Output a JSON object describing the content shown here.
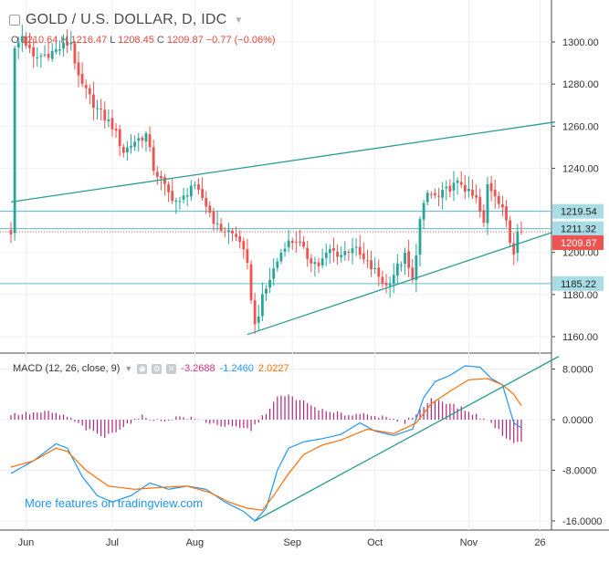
{
  "header": {
    "symbol_title": "GOLD / U.S. DOLLAR, D, IDC",
    "ohlc": {
      "o_label": "O",
      "o_value": "1210.64",
      "h_label": "H",
      "h_value": "1216.47",
      "l_label": "L",
      "l_value": "1208.45",
      "c_label": "C",
      "c_value": "1209.87",
      "change": "−0.77 (−0.06%)"
    }
  },
  "macd_legend": {
    "label": "MACD (12, 26, close, 9)",
    "hist_value": "-3.2688",
    "macd_value": "-1.2460",
    "signal_value": "2.0227"
  },
  "watermark": "More features on tradingview.com",
  "colors": {
    "candle_up": "#26a69a",
    "candle_down": "#ef5350",
    "trendline": "#2a9d8f",
    "hline": "#5bbcc9",
    "price_label_bg": "#a8dde6",
    "last_price_bg": "#ef5350",
    "macd_line": "#2196f3",
    "signal_line": "#ff6d00",
    "histogram": "#b0257a"
  },
  "chart_data": [
    {
      "type": "candlestick",
      "title": "GOLD / U.S. DOLLAR, D, IDC",
      "x_tick_labels": [
        "Jun",
        "Jul",
        "Aug",
        "Sep",
        "Oct",
        "Nov",
        "26"
      ],
      "y_tick_labels": [
        "1300.00",
        "1280.00",
        "1260.00",
        "1240.00",
        "1200.00",
        "1180.00",
        "1160.00"
      ],
      "ylim": [
        1153,
        1315
      ],
      "grid": true,
      "close_anchors": [
        {
          "day": 1,
          "close": 1296
        },
        {
          "day": 3,
          "close": 1303
        },
        {
          "day": 6,
          "close": 1292
        },
        {
          "day": 12,
          "close": 1296
        },
        {
          "day": 16,
          "close": 1300
        },
        {
          "day": 18,
          "close": 1282
        },
        {
          "day": 23,
          "close": 1268
        },
        {
          "day": 27,
          "close": 1260
        },
        {
          "day": 30,
          "close": 1248
        },
        {
          "day": 33,
          "close": 1253
        },
        {
          "day": 36,
          "close": 1256
        },
        {
          "day": 38,
          "close": 1240
        },
        {
          "day": 42,
          "close": 1228
        },
        {
          "day": 45,
          "close": 1223
        },
        {
          "day": 48,
          "close": 1232
        },
        {
          "day": 51,
          "close": 1226
        },
        {
          "day": 55,
          "close": 1212
        },
        {
          "day": 58,
          "close": 1210
        },
        {
          "day": 61,
          "close": 1206
        },
        {
          "day": 63,
          "close": 1193
        },
        {
          "day": 65,
          "close": 1165
        },
        {
          "day": 67,
          "close": 1178
        },
        {
          "day": 70,
          "close": 1192
        },
        {
          "day": 73,
          "close": 1204
        },
        {
          "day": 76,
          "close": 1206
        },
        {
          "day": 79,
          "close": 1198
        },
        {
          "day": 82,
          "close": 1194
        },
        {
          "day": 85,
          "close": 1201
        },
        {
          "day": 88,
          "close": 1199
        },
        {
          "day": 91,
          "close": 1203
        },
        {
          "day": 94,
          "close": 1196
        },
        {
          "day": 97,
          "close": 1191
        },
        {
          "day": 100,
          "close": 1184
        },
        {
          "day": 103,
          "close": 1193
        },
        {
          "day": 105,
          "close": 1198
        },
        {
          "day": 107,
          "close": 1186
        },
        {
          "day": 109,
          "close": 1215
        },
        {
          "day": 111,
          "close": 1228
        },
        {
          "day": 114,
          "close": 1226
        },
        {
          "day": 117,
          "close": 1231
        },
        {
          "day": 120,
          "close": 1233
        },
        {
          "day": 122,
          "close": 1228
        },
        {
          "day": 124,
          "close": 1225
        },
        {
          "day": 126,
          "close": 1213
        },
        {
          "day": 127,
          "close": 1232
        },
        {
          "day": 129,
          "close": 1228
        },
        {
          "day": 131,
          "close": 1222
        },
        {
          "day": 133,
          "close": 1205
        },
        {
          "day": 134,
          "close": 1200
        },
        {
          "day": 135,
          "close": 1212
        },
        {
          "day": 136,
          "close": 1210
        }
      ],
      "horizontal_levels": [
        1219.54,
        1211.32,
        1185.22
      ],
      "last_price": 1209.87,
      "trendlines": [
        {
          "from": {
            "day": 0,
            "price": 1224
          },
          "to": {
            "day": 145,
            "price": 1262
          }
        },
        {
          "from": {
            "day": 63,
            "price": 1161
          },
          "to": {
            "day": 145,
            "price": 1210
          }
        }
      ],
      "price_labels": {
        "level_1": "1219.54",
        "level_2": "1211.32",
        "last": "1209.87",
        "level_3": "1185.22"
      }
    },
    {
      "type": "line",
      "title": "MACD (12, 26, close, 9)",
      "y_tick_labels": [
        "8.0000",
        "0.0000",
        "-8.0000",
        "-16.0000"
      ],
      "ylim": [
        -17,
        10
      ],
      "series": [
        {
          "name": "MACD",
          "anchors": [
            {
              "day": 0,
              "value": -8.5
            },
            {
              "day": 6,
              "value": -6.5
            },
            {
              "day": 12,
              "value": -3.8
            },
            {
              "day": 15,
              "value": -4.5
            },
            {
              "day": 19,
              "value": -9
            },
            {
              "day": 23,
              "value": -12
            },
            {
              "day": 27,
              "value": -13
            },
            {
              "day": 32,
              "value": -12
            },
            {
              "day": 37,
              "value": -10
            },
            {
              "day": 42,
              "value": -11
            },
            {
              "day": 47,
              "value": -10.5
            },
            {
              "day": 52,
              "value": -11
            },
            {
              "day": 57,
              "value": -13
            },
            {
              "day": 62,
              "value": -14.5
            },
            {
              "day": 65,
              "value": -16
            },
            {
              "day": 68,
              "value": -14
            },
            {
              "day": 71,
              "value": -8
            },
            {
              "day": 74,
              "value": -4.5
            },
            {
              "day": 78,
              "value": -3.5
            },
            {
              "day": 83,
              "value": -3
            },
            {
              "day": 88,
              "value": -2.3
            },
            {
              "day": 93,
              "value": -0.5
            },
            {
              "day": 97,
              "value": -1.8
            },
            {
              "day": 102,
              "value": -2.5
            },
            {
              "day": 107,
              "value": -1.5
            },
            {
              "day": 110,
              "value": 3.5
            },
            {
              "day": 113,
              "value": 6
            },
            {
              "day": 117,
              "value": 7
            },
            {
              "day": 121,
              "value": 8.5
            },
            {
              "day": 125,
              "value": 8.3
            },
            {
              "day": 128,
              "value": 6.5
            },
            {
              "day": 131,
              "value": 5.5
            },
            {
              "day": 134,
              "value": -0.5
            },
            {
              "day": 136,
              "value": -1.3
            }
          ]
        },
        {
          "name": "Signal",
          "anchors": [
            {
              "day": 0,
              "value": -7.5
            },
            {
              "day": 6,
              "value": -6.5
            },
            {
              "day": 12,
              "value": -4.5
            },
            {
              "day": 15,
              "value": -5
            },
            {
              "day": 20,
              "value": -8
            },
            {
              "day": 26,
              "value": -10.5
            },
            {
              "day": 33,
              "value": -11
            },
            {
              "day": 40,
              "value": -10.7
            },
            {
              "day": 47,
              "value": -10.5
            },
            {
              "day": 53,
              "value": -11.5
            },
            {
              "day": 58,
              "value": -13
            },
            {
              "day": 63,
              "value": -14
            },
            {
              "day": 67,
              "value": -14.3
            },
            {
              "day": 70,
              "value": -12
            },
            {
              "day": 74,
              "value": -8.5
            },
            {
              "day": 78,
              "value": -5.5
            },
            {
              "day": 83,
              "value": -4
            },
            {
              "day": 88,
              "value": -3.2
            },
            {
              "day": 95,
              "value": -1.5
            },
            {
              "day": 102,
              "value": -2.2
            },
            {
              "day": 108,
              "value": -0.5
            },
            {
              "day": 112,
              "value": 2.5
            },
            {
              "day": 117,
              "value": 4.5
            },
            {
              "day": 122,
              "value": 6.3
            },
            {
              "day": 127,
              "value": 6.5
            },
            {
              "day": 131,
              "value": 5.5
            },
            {
              "day": 134,
              "value": 4
            },
            {
              "day": 136,
              "value": 2.2
            }
          ]
        }
      ],
      "histogram_anchors": [
        {
          "day": 0,
          "value": 0.8
        },
        {
          "day": 10,
          "value": 1.2
        },
        {
          "day": 15,
          "value": 0.5
        },
        {
          "day": 20,
          "value": -1.5
        },
        {
          "day": 25,
          "value": -2.8
        },
        {
          "day": 30,
          "value": -1
        },
        {
          "day": 35,
          "value": 0.5
        },
        {
          "day": 40,
          "value": -0.3
        },
        {
          "day": 45,
          "value": 0.5
        },
        {
          "day": 50,
          "value": 0
        },
        {
          "day": 55,
          "value": -0.8
        },
        {
          "day": 60,
          "value": -1.3
        },
        {
          "day": 64,
          "value": -1.6
        },
        {
          "day": 67,
          "value": 0.4
        },
        {
          "day": 71,
          "value": 3.5
        },
        {
          "day": 74,
          "value": 3.8
        },
        {
          "day": 78,
          "value": 2.8
        },
        {
          "day": 84,
          "value": 1.2
        },
        {
          "day": 90,
          "value": 0.8
        },
        {
          "day": 95,
          "value": 1
        },
        {
          "day": 100,
          "value": 0.2
        },
        {
          "day": 105,
          "value": -0.4
        },
        {
          "day": 108,
          "value": 1
        },
        {
          "day": 112,
          "value": 3.2
        },
        {
          "day": 115,
          "value": 3
        },
        {
          "day": 120,
          "value": 1.8
        },
        {
          "day": 124,
          "value": 0.7
        },
        {
          "day": 128,
          "value": -0.5
        },
        {
          "day": 133,
          "value": -3.5
        },
        {
          "day": 136,
          "value": -3.3
        }
      ],
      "trendline": {
        "from": {
          "day": 65,
          "value": -16
        },
        "to": {
          "day": 146,
          "value": 10
        }
      }
    }
  ]
}
